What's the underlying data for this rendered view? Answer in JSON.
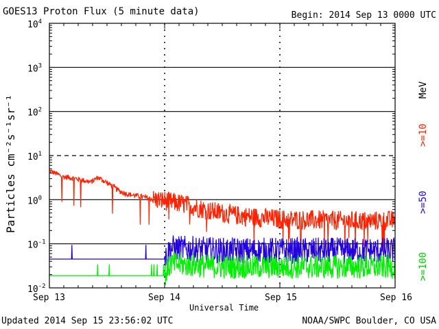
{
  "header": {
    "title": "GOES13 Proton Flux (5 minute data)",
    "begin": "Begin: 2014 Sep 13 0000 UTC"
  },
  "footer": {
    "updated": "Updated 2014 Sep 15 23:56:02 UTC",
    "credit": "NOAA/SWPC Boulder, CO USA"
  },
  "axes": {
    "ylabel": "Particles cm⁻²s⁻¹sr⁻¹",
    "xlabel": "Universal Time",
    "xticks": [
      "Sep 13",
      "Sep 14",
      "Sep 15",
      "Sep 16"
    ],
    "ytick_base": "10",
    "ytick_exps": [
      "4",
      "3",
      "2",
      "1",
      "0",
      "-1",
      "-2"
    ]
  },
  "legend": {
    "unit": "MeV",
    "entries": [
      {
        "label": ">=10",
        "color": "#ff2200"
      },
      {
        "label": ">=50",
        "color": "#2200dd"
      },
      {
        "label": ">=100",
        "color": "#00ee00"
      }
    ]
  },
  "chart_data": {
    "type": "line",
    "title": "GOES13 Proton Flux (5 minute data)",
    "xlabel": "Universal Time",
    "ylabel": "Particles cm-2 s-1 sr-1",
    "yscale": "log",
    "ylim": [
      0.01,
      10000
    ],
    "x_unit": "days since 2014 Sep 13 0000 UTC",
    "xlim": [
      0,
      3
    ],
    "x_categories": [
      "Sep 13",
      "Sep 14",
      "Sep 15",
      "Sep 16"
    ],
    "grid": true,
    "legend_placement": "right",
    "series": [
      {
        "name": ">=10",
        "color": "#ff2200",
        "points": [
          [
            0,
            4.5
          ],
          [
            0.06,
            3.9
          ],
          [
            0.12,
            3.3
          ],
          [
            0.2,
            3.1
          ],
          [
            0.28,
            2.8
          ],
          [
            0.36,
            2.5
          ],
          [
            0.42,
            3.2
          ],
          [
            0.48,
            2.6
          ],
          [
            0.55,
            2.0
          ],
          [
            0.62,
            1.5
          ],
          [
            0.7,
            1.3
          ],
          [
            0.78,
            1.2
          ],
          [
            0.85,
            1.1
          ],
          [
            0.92,
            1.0
          ],
          [
            1.0,
            0.95
          ],
          [
            1.1,
            0.85
          ],
          [
            1.2,
            0.75
          ],
          [
            1.3,
            0.65
          ],
          [
            1.4,
            0.55
          ],
          [
            1.5,
            0.5
          ],
          [
            1.6,
            0.45
          ],
          [
            1.7,
            0.42
          ],
          [
            1.8,
            0.4
          ],
          [
            1.9,
            0.38
          ],
          [
            2.0,
            0.36
          ],
          [
            2.2,
            0.35
          ],
          [
            2.4,
            0.34
          ],
          [
            2.6,
            0.33
          ],
          [
            2.8,
            0.33
          ],
          [
            3.0,
            0.34
          ]
        ]
      },
      {
        "name": ">=50",
        "color": "#2200dd",
        "points": [
          [
            0,
            0.045
          ],
          [
            0.5,
            0.045
          ],
          [
            1.0,
            0.045
          ],
          [
            1.05,
            0.08
          ],
          [
            1.5,
            0.07
          ],
          [
            2.0,
            0.07
          ],
          [
            2.5,
            0.07
          ],
          [
            3.0,
            0.07
          ]
        ]
      },
      {
        "name": ">=100",
        "color": "#00ee00",
        "points": [
          [
            0,
            0.019
          ],
          [
            0.5,
            0.019
          ],
          [
            1.0,
            0.019
          ],
          [
            1.05,
            0.035
          ],
          [
            1.5,
            0.03
          ],
          [
            2.0,
            0.03
          ],
          [
            2.5,
            0.03
          ],
          [
            3.0,
            0.03
          ]
        ]
      }
    ]
  }
}
